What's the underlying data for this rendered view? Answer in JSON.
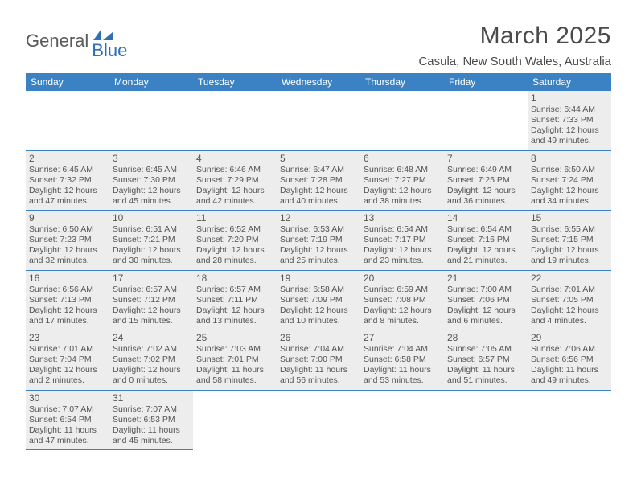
{
  "logo": {
    "text_general": "General",
    "text_blue": "Blue",
    "icon_color": "#2d6fb8"
  },
  "header": {
    "month_title": "March 2025",
    "location": "Casula, New South Wales, Australia"
  },
  "colors": {
    "header_bg": "#3b82c4",
    "header_text": "#ffffff",
    "border": "#3b82c4",
    "shaded": "#ededed",
    "text": "#555555"
  },
  "weekdays": [
    "Sunday",
    "Monday",
    "Tuesday",
    "Wednesday",
    "Thursday",
    "Friday",
    "Saturday"
  ],
  "weeks": [
    [
      null,
      null,
      null,
      null,
      null,
      null,
      {
        "n": "1",
        "sr": "Sunrise: 6:44 AM",
        "ss": "Sunset: 7:33 PM",
        "dl": "Daylight: 12 hours and 49 minutes."
      }
    ],
    [
      {
        "n": "2",
        "sr": "Sunrise: 6:45 AM",
        "ss": "Sunset: 7:32 PM",
        "dl": "Daylight: 12 hours and 47 minutes."
      },
      {
        "n": "3",
        "sr": "Sunrise: 6:45 AM",
        "ss": "Sunset: 7:30 PM",
        "dl": "Daylight: 12 hours and 45 minutes."
      },
      {
        "n": "4",
        "sr": "Sunrise: 6:46 AM",
        "ss": "Sunset: 7:29 PM",
        "dl": "Daylight: 12 hours and 42 minutes."
      },
      {
        "n": "5",
        "sr": "Sunrise: 6:47 AM",
        "ss": "Sunset: 7:28 PM",
        "dl": "Daylight: 12 hours and 40 minutes."
      },
      {
        "n": "6",
        "sr": "Sunrise: 6:48 AM",
        "ss": "Sunset: 7:27 PM",
        "dl": "Daylight: 12 hours and 38 minutes."
      },
      {
        "n": "7",
        "sr": "Sunrise: 6:49 AM",
        "ss": "Sunset: 7:25 PM",
        "dl": "Daylight: 12 hours and 36 minutes."
      },
      {
        "n": "8",
        "sr": "Sunrise: 6:50 AM",
        "ss": "Sunset: 7:24 PM",
        "dl": "Daylight: 12 hours and 34 minutes."
      }
    ],
    [
      {
        "n": "9",
        "sr": "Sunrise: 6:50 AM",
        "ss": "Sunset: 7:23 PM",
        "dl": "Daylight: 12 hours and 32 minutes."
      },
      {
        "n": "10",
        "sr": "Sunrise: 6:51 AM",
        "ss": "Sunset: 7:21 PM",
        "dl": "Daylight: 12 hours and 30 minutes."
      },
      {
        "n": "11",
        "sr": "Sunrise: 6:52 AM",
        "ss": "Sunset: 7:20 PM",
        "dl": "Daylight: 12 hours and 28 minutes."
      },
      {
        "n": "12",
        "sr": "Sunrise: 6:53 AM",
        "ss": "Sunset: 7:19 PM",
        "dl": "Daylight: 12 hours and 25 minutes."
      },
      {
        "n": "13",
        "sr": "Sunrise: 6:54 AM",
        "ss": "Sunset: 7:17 PM",
        "dl": "Daylight: 12 hours and 23 minutes."
      },
      {
        "n": "14",
        "sr": "Sunrise: 6:54 AM",
        "ss": "Sunset: 7:16 PM",
        "dl": "Daylight: 12 hours and 21 minutes."
      },
      {
        "n": "15",
        "sr": "Sunrise: 6:55 AM",
        "ss": "Sunset: 7:15 PM",
        "dl": "Daylight: 12 hours and 19 minutes."
      }
    ],
    [
      {
        "n": "16",
        "sr": "Sunrise: 6:56 AM",
        "ss": "Sunset: 7:13 PM",
        "dl": "Daylight: 12 hours and 17 minutes."
      },
      {
        "n": "17",
        "sr": "Sunrise: 6:57 AM",
        "ss": "Sunset: 7:12 PM",
        "dl": "Daylight: 12 hours and 15 minutes."
      },
      {
        "n": "18",
        "sr": "Sunrise: 6:57 AM",
        "ss": "Sunset: 7:11 PM",
        "dl": "Daylight: 12 hours and 13 minutes."
      },
      {
        "n": "19",
        "sr": "Sunrise: 6:58 AM",
        "ss": "Sunset: 7:09 PM",
        "dl": "Daylight: 12 hours and 10 minutes."
      },
      {
        "n": "20",
        "sr": "Sunrise: 6:59 AM",
        "ss": "Sunset: 7:08 PM",
        "dl": "Daylight: 12 hours and 8 minutes."
      },
      {
        "n": "21",
        "sr": "Sunrise: 7:00 AM",
        "ss": "Sunset: 7:06 PM",
        "dl": "Daylight: 12 hours and 6 minutes."
      },
      {
        "n": "22",
        "sr": "Sunrise: 7:01 AM",
        "ss": "Sunset: 7:05 PM",
        "dl": "Daylight: 12 hours and 4 minutes."
      }
    ],
    [
      {
        "n": "23",
        "sr": "Sunrise: 7:01 AM",
        "ss": "Sunset: 7:04 PM",
        "dl": "Daylight: 12 hours and 2 minutes."
      },
      {
        "n": "24",
        "sr": "Sunrise: 7:02 AM",
        "ss": "Sunset: 7:02 PM",
        "dl": "Daylight: 12 hours and 0 minutes."
      },
      {
        "n": "25",
        "sr": "Sunrise: 7:03 AM",
        "ss": "Sunset: 7:01 PM",
        "dl": "Daylight: 11 hours and 58 minutes."
      },
      {
        "n": "26",
        "sr": "Sunrise: 7:04 AM",
        "ss": "Sunset: 7:00 PM",
        "dl": "Daylight: 11 hours and 56 minutes."
      },
      {
        "n": "27",
        "sr": "Sunrise: 7:04 AM",
        "ss": "Sunset: 6:58 PM",
        "dl": "Daylight: 11 hours and 53 minutes."
      },
      {
        "n": "28",
        "sr": "Sunrise: 7:05 AM",
        "ss": "Sunset: 6:57 PM",
        "dl": "Daylight: 11 hours and 51 minutes."
      },
      {
        "n": "29",
        "sr": "Sunrise: 7:06 AM",
        "ss": "Sunset: 6:56 PM",
        "dl": "Daylight: 11 hours and 49 minutes."
      }
    ],
    [
      {
        "n": "30",
        "sr": "Sunrise: 7:07 AM",
        "ss": "Sunset: 6:54 PM",
        "dl": "Daylight: 11 hours and 47 minutes."
      },
      {
        "n": "31",
        "sr": "Sunrise: 7:07 AM",
        "ss": "Sunset: 6:53 PM",
        "dl": "Daylight: 11 hours and 45 minutes."
      },
      null,
      null,
      null,
      null,
      null
    ]
  ]
}
